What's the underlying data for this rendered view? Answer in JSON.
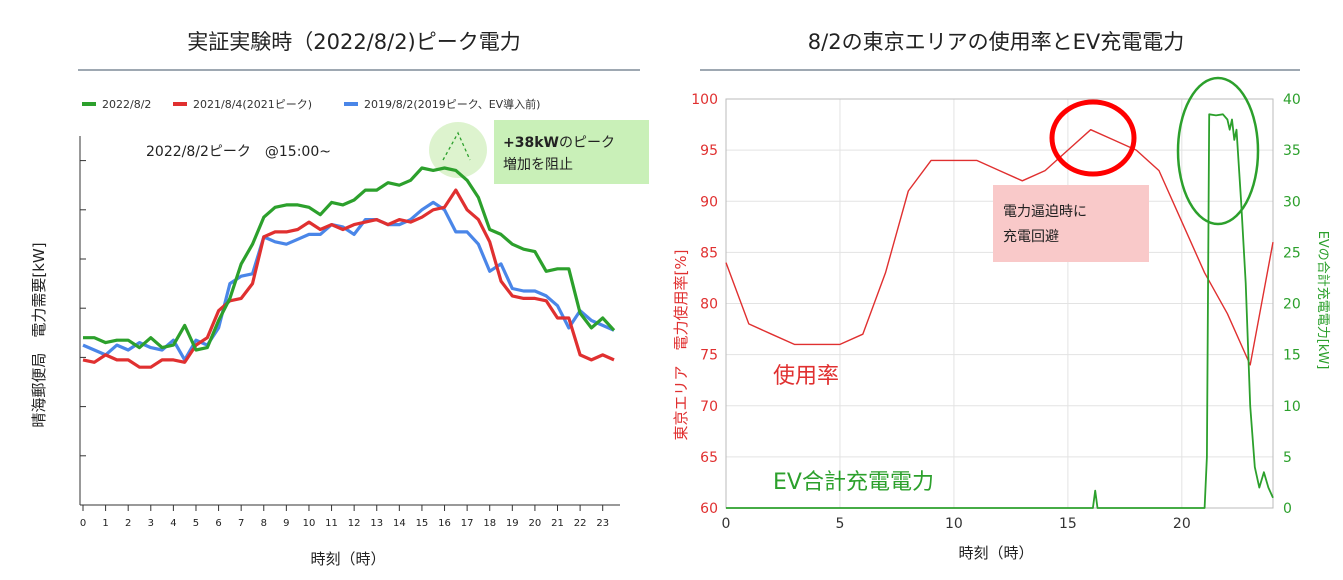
{
  "chart_data": [
    {
      "type": "line",
      "title": "実証実験時（2022/8/2)ピーク電力",
      "xlabel": "時刻（時）",
      "ylabel": "晴海郵便局　電力需要[kW]",
      "xticks": [
        "0",
        "1",
        "2",
        "3",
        "4",
        "5",
        "6",
        "7",
        "8",
        "9",
        "10",
        "11",
        "12",
        "13",
        "14",
        "15",
        "16",
        "17",
        "18",
        "19",
        "20",
        "21",
        "22",
        "23"
      ],
      "xlim": [
        0,
        23.5
      ],
      "ylim": [
        0,
        7.5
      ],
      "legend_position": "top",
      "grid": false,
      "annotation": "2022/8/2ピーク　@15:00~",
      "callout": {
        "line1_bold": "+38kW",
        "line1_rest": "のピーク",
        "line2": "増加を阻止"
      },
      "series": [
        {
          "name": "2022/8/2",
          "color": "#2ca02c",
          "x": [
            0,
            0.5,
            1,
            1.5,
            2,
            2.5,
            3,
            3.5,
            4,
            4.5,
            5,
            5.5,
            6,
            6.5,
            7,
            7.5,
            8,
            8.5,
            9,
            9.5,
            10,
            10.5,
            11,
            11.5,
            12,
            12.5,
            13,
            13.5,
            14,
            14.5,
            15,
            15.5,
            16,
            16.5,
            17,
            17.5,
            18,
            18.5,
            19,
            19.5,
            20,
            20.5,
            21,
            21.5,
            22,
            22.5,
            23,
            23.5
          ],
          "values": [
            3.4,
            3.4,
            3.3,
            3.35,
            3.35,
            3.2,
            3.4,
            3.2,
            3.25,
            3.65,
            3.15,
            3.2,
            3.75,
            4.2,
            4.9,
            5.3,
            5.85,
            6.05,
            6.1,
            6.1,
            6.05,
            5.9,
            6.15,
            6.1,
            6.2,
            6.4,
            6.4,
            6.55,
            6.5,
            6.6,
            6.85,
            6.8,
            6.85,
            6.8,
            6.6,
            6.25,
            5.6,
            5.5,
            5.3,
            5.2,
            5.15,
            4.75,
            4.8,
            4.8,
            3.9,
            3.6,
            3.8,
            3.55
          ]
        },
        {
          "name": "2021/8/4(2021ピーク)",
          "color": "#e03030",
          "x": [
            0,
            0.5,
            1,
            1.5,
            2,
            2.5,
            3,
            3.5,
            4,
            4.5,
            5,
            5.5,
            6,
            6.5,
            7,
            7.5,
            8,
            8.5,
            9,
            9.5,
            10,
            10.5,
            11,
            11.5,
            12,
            12.5,
            13,
            13.5,
            14,
            14.5,
            15,
            15.5,
            16,
            16.5,
            17,
            17.5,
            18,
            18.5,
            19,
            19.5,
            20,
            20.5,
            21,
            21.5,
            22,
            22.5,
            23,
            23.5
          ],
          "values": [
            2.95,
            2.9,
            3.05,
            2.95,
            2.95,
            2.8,
            2.8,
            2.95,
            2.95,
            2.9,
            3.25,
            3.4,
            3.95,
            4.15,
            4.2,
            4.5,
            5.45,
            5.55,
            5.55,
            5.6,
            5.75,
            5.6,
            5.7,
            5.6,
            5.7,
            5.75,
            5.8,
            5.7,
            5.8,
            5.75,
            5.85,
            6.0,
            6.05,
            6.4,
            6.0,
            5.8,
            5.35,
            4.55,
            4.25,
            4.2,
            4.2,
            4.15,
            3.8,
            3.8,
            3.05,
            2.95,
            3.05,
            2.95
          ]
        },
        {
          "name": "2019/8/2(2019ピーク、EV導入前)",
          "color": "#4a86e8",
          "x": [
            0,
            0.5,
            1,
            1.5,
            2,
            2.5,
            3,
            3.5,
            4,
            4.5,
            5,
            5.5,
            6,
            6.5,
            7,
            7.5,
            8,
            8.5,
            9,
            9.5,
            10,
            10.5,
            11,
            11.5,
            12,
            12.5,
            13,
            13.5,
            14,
            14.5,
            15,
            15.5,
            16,
            16.5,
            17,
            17.5,
            18,
            18.5,
            19,
            19.5,
            20,
            20.5,
            21,
            21.5,
            22,
            22.5,
            23,
            23.5
          ],
          "values": [
            3.25,
            3.15,
            3.05,
            3.25,
            3.15,
            3.3,
            3.2,
            3.15,
            3.35,
            2.95,
            3.35,
            3.25,
            3.6,
            4.5,
            4.65,
            4.7,
            5.45,
            5.35,
            5.3,
            5.4,
            5.5,
            5.5,
            5.7,
            5.65,
            5.5,
            5.8,
            5.8,
            5.7,
            5.7,
            5.8,
            6.0,
            6.15,
            6.0,
            5.55,
            5.55,
            5.3,
            4.75,
            4.9,
            4.4,
            4.35,
            4.35,
            4.25,
            4.05,
            3.6,
            3.95,
            3.75,
            3.65,
            3.55
          ]
        }
      ]
    },
    {
      "type": "line",
      "title": "8/2の東京エリアの使用率とEV充電電力",
      "xlabel": "時刻（時）",
      "ylabel": "東京エリア　電力使用率[%]",
      "y2label": "EVの合計充電電力[kW]",
      "xticks": [
        "0",
        "5",
        "10",
        "15",
        "20"
      ],
      "xlim": [
        0,
        24
      ],
      "ylim": [
        60,
        100
      ],
      "y2lim": [
        0,
        40
      ],
      "yticks": [
        "60",
        "65",
        "70",
        "75",
        "80",
        "85",
        "90",
        "95",
        "100"
      ],
      "y2ticks": [
        "0",
        "5",
        "10",
        "15",
        "20",
        "25",
        "30",
        "35",
        "40"
      ],
      "grid": true,
      "annotation": {
        "line1": "電力逼迫時に",
        "line2": "充電回避"
      },
      "label_usage": "使用率",
      "label_ev": "EV合計充電電力",
      "series": [
        {
          "name": "使用率",
          "axis": "left",
          "color": "#e03030",
          "x": [
            0,
            1,
            2,
            3,
            4,
            5,
            6,
            7,
            8,
            9,
            10,
            11,
            12,
            13,
            14,
            15,
            16,
            17,
            18,
            19,
            20,
            21,
            22,
            23,
            24
          ],
          "values": [
            84,
            78,
            77,
            76,
            76,
            76,
            77,
            83,
            91,
            94,
            94,
            94,
            93,
            92,
            93,
            95,
            97,
            96,
            95,
            93,
            88,
            83,
            79,
            74,
            86
          ]
        },
        {
          "name": "EV合計充電電力",
          "axis": "right",
          "color": "#2ca02c",
          "x": [
            0,
            16.1,
            16.2,
            16.3,
            16.4,
            20.9,
            21.0,
            21.1,
            21.2,
            21.5,
            21.8,
            22.0,
            22.1,
            22.2,
            22.3,
            22.4,
            22.6,
            22.8,
            23.0,
            23.2,
            23.4,
            23.6,
            23.8,
            24.0
          ],
          "values": [
            0,
            0,
            1.7,
            0,
            0,
            0,
            0,
            5,
            38.5,
            38.4,
            38.5,
            38,
            37,
            38,
            36,
            37,
            30,
            22,
            10,
            4,
            2,
            3.5,
            2,
            1
          ]
        }
      ]
    }
  ]
}
